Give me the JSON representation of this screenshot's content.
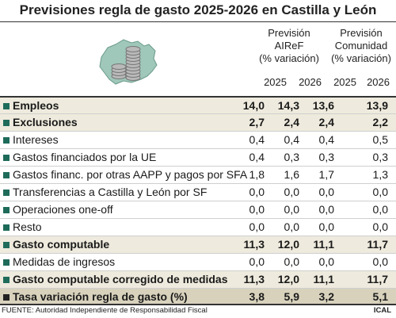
{
  "title": "Previsiones regla de gasto 2025-2026 en Castilla y León",
  "columns": {
    "group1": [
      "Previsión",
      "AIReF",
      "(% variación)"
    ],
    "group2": [
      "Previsión",
      "Comunidad",
      "(% variación)"
    ],
    "years": [
      "2025",
      "2026",
      "2025",
      "2026"
    ]
  },
  "rows": [
    {
      "label": "Empleos",
      "values": [
        "14,0",
        "14,3",
        "13,6",
        "13,9"
      ]
    },
    {
      "label": "Exclusiones",
      "values": [
        "2,7",
        "2,4",
        "2,4",
        "2,2"
      ]
    },
    {
      "label": "Intereses",
      "values": [
        "0,4",
        "0,4",
        "0,4",
        "0,5"
      ]
    },
    {
      "label": "Gastos financiados por la UE",
      "values": [
        "0,4",
        "0,3",
        "0,3",
        "0,3"
      ]
    },
    {
      "label": "Gastos financ. por otras AAPP y pagos por SFA",
      "values": [
        "1,8",
        "1,6",
        "1,7",
        "1,3"
      ]
    },
    {
      "label": "Transferencias a Castilla y León por SF",
      "values": [
        "0,0",
        "0,0",
        "0,0",
        "0,0"
      ]
    },
    {
      "label": "Operaciones one-off",
      "values": [
        "0,0",
        "0,0",
        "0,0",
        "0,0"
      ]
    },
    {
      "label": "Resto",
      "values": [
        "0,0",
        "0,0",
        "0,0",
        "0,0"
      ]
    },
    {
      "label": "Gasto computable",
      "values": [
        "11,3",
        "12,0",
        "11,1",
        "11,7"
      ]
    },
    {
      "label": "Medidas de ingresos",
      "values": [
        "0,0",
        "0,0",
        "0,0",
        "0,0"
      ]
    },
    {
      "label": "Gasto computable corregido de medidas",
      "values": [
        "11,3",
        "12,0",
        "11,1",
        "11,7"
      ]
    },
    {
      "label": "Tasa variación regla de gasto (%)",
      "values": [
        "3,8",
        "5,9",
        "3,2",
        "5,1"
      ]
    }
  ],
  "footer": "FUENTE: Autoridad Independiente de Responsabilidad Fiscal",
  "credit": "ICAL",
  "colors": {
    "accent": "#1e6b5a",
    "highlight_row": "#eeeadd",
    "total_row": "#d8d2bd"
  }
}
